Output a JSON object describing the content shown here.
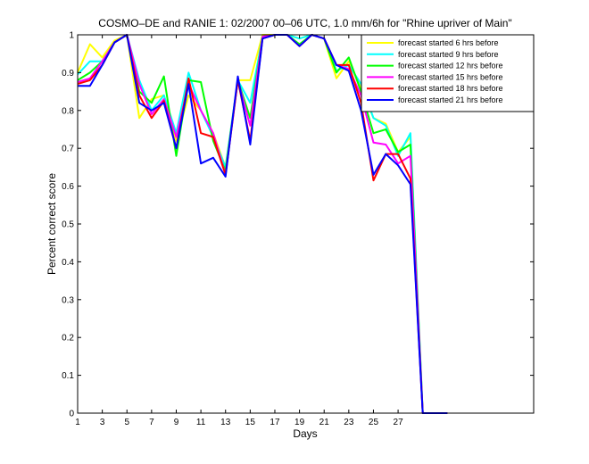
{
  "chart_data": {
    "type": "line",
    "title": "COSMO–DE and RANIE 1: 02/2007 00–06 UTC, 1.0 mm/6h for \"Rhine upriver of Main\"",
    "xlabel": "Days",
    "ylabel": "Percent correct score",
    "xlim": [
      1,
      38
    ],
    "ylim": [
      0,
      1
    ],
    "xticks": [
      1,
      3,
      5,
      7,
      9,
      11,
      13,
      15,
      17,
      19,
      21,
      23,
      25,
      27
    ],
    "yticks": [
      0,
      0.1,
      0.2,
      0.3,
      0.4,
      0.5,
      0.6,
      0.7,
      0.8,
      0.9,
      1
    ],
    "grid": false,
    "legend_position": "top-right",
    "x": [
      1,
      2,
      3,
      4,
      5,
      6,
      7,
      8,
      9,
      10,
      11,
      12,
      13,
      14,
      15,
      16,
      17,
      18,
      19,
      20,
      21,
      22,
      23,
      24,
      25,
      26,
      27,
      28,
      29,
      30,
      31
    ],
    "series": [
      {
        "name": "forecast started 6 hrs before",
        "color": "#ffff00",
        "values": [
          0.9,
          0.975,
          0.94,
          0.985,
          1.0,
          0.78,
          0.83,
          0.84,
          0.72,
          0.84,
          0.8,
          0.74,
          0.65,
          0.88,
          0.88,
          1.0,
          1.0,
          1.0,
          0.99,
          1.0,
          0.99,
          0.885,
          0.93,
          0.86,
          0.78,
          0.765,
          0.69,
          0.73,
          0.0,
          0.0,
          0.0
        ]
      },
      {
        "name": "forecast started 9 hrs before",
        "color": "#00ffff",
        "values": [
          0.895,
          0.93,
          0.93,
          0.98,
          1.0,
          0.88,
          0.8,
          0.84,
          0.74,
          0.9,
          0.8,
          0.73,
          0.65,
          0.88,
          0.82,
          0.995,
          1.0,
          1.0,
          0.99,
          1.0,
          0.99,
          0.905,
          0.92,
          0.87,
          0.78,
          0.76,
          0.68,
          0.74,
          0.0,
          0.0,
          0.0
        ]
      },
      {
        "name": "forecast started 12 hrs before",
        "color": "#00ff00",
        "values": [
          0.88,
          0.9,
          0.93,
          0.98,
          1.0,
          0.85,
          0.82,
          0.89,
          0.68,
          0.88,
          0.875,
          0.72,
          0.64,
          0.88,
          0.78,
          0.995,
          1.0,
          1.0,
          0.975,
          1.0,
          0.99,
          0.9,
          0.94,
          0.85,
          0.74,
          0.75,
          0.69,
          0.71,
          0.0,
          0.0,
          0.0
        ]
      },
      {
        "name": "forecast started 15 hrs before",
        "color": "#ff00ff",
        "values": [
          0.875,
          0.885,
          0.93,
          0.98,
          1.0,
          0.87,
          0.79,
          0.83,
          0.73,
          0.87,
          0.8,
          0.74,
          0.63,
          0.88,
          0.76,
          0.995,
          1.0,
          1.0,
          0.97,
          1.0,
          0.99,
          0.92,
          0.91,
          0.84,
          0.715,
          0.71,
          0.66,
          0.68,
          0.0,
          0.0,
          0.0
        ]
      },
      {
        "name": "forecast started 18 hrs before",
        "color": "#ff0000",
        "values": [
          0.87,
          0.88,
          0.92,
          0.98,
          1.0,
          0.84,
          0.78,
          0.825,
          0.7,
          0.885,
          0.74,
          0.73,
          0.63,
          0.88,
          0.72,
          0.99,
          1.0,
          1.0,
          0.97,
          1.0,
          0.99,
          0.92,
          0.92,
          0.82,
          0.615,
          0.685,
          0.685,
          0.62,
          0.0,
          0.0,
          0.0
        ]
      },
      {
        "name": "forecast started 21 hrs before",
        "color": "#0000ff",
        "values": [
          0.865,
          0.865,
          0.92,
          0.98,
          1.0,
          0.82,
          0.8,
          0.82,
          0.7,
          0.87,
          0.66,
          0.675,
          0.625,
          0.89,
          0.71,
          0.99,
          1.0,
          1.0,
          0.97,
          1.0,
          0.99,
          0.92,
          0.905,
          0.8,
          0.63,
          0.685,
          0.655,
          0.605,
          0.0,
          0.0,
          0.0
        ]
      }
    ]
  }
}
